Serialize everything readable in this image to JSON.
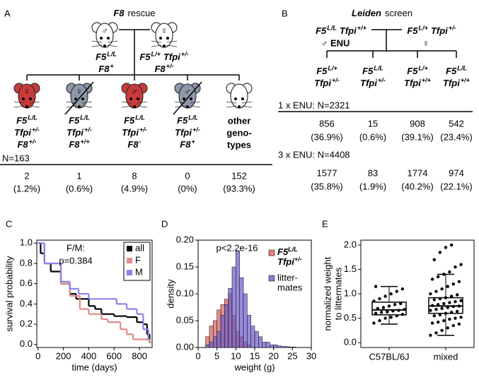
{
  "panel_a": {
    "letter": "A",
    "title_italic": "F8",
    "title_rest": "rescue",
    "parents": [
      {
        "sex": "♂",
        "color": "#ffffff",
        "label": [
          [
            {
              "g": "F5",
              "s": "L/L"
            }
          ],
          [
            {
              "g": "F8",
              "s": "+"
            }
          ]
        ]
      },
      {
        "sex": "♀",
        "color": "#ffffff",
        "label": [
          [
            {
              "g": "F5",
              "s": "L/+"
            },
            {
              "g": "Tfpi",
              "s": "+/-"
            }
          ],
          [
            {
              "g": "F8",
              "s": "+/-"
            }
          ]
        ]
      }
    ],
    "offspring": [
      {
        "sex": "♀",
        "color": "#c93a3a",
        "crossed": false,
        "label": [
          [
            {
              "g": "F5",
              "s": "L/L"
            }
          ],
          [
            {
              "g": "Tfpi",
              "s": "+/-"
            }
          ],
          [
            {
              "g": "F8",
              "s": "+/-"
            }
          ]
        ]
      },
      {
        "sex": "♀",
        "color": "#8e97aa",
        "crossed": true,
        "label": [
          [
            {
              "g": "F5",
              "s": "L/L"
            }
          ],
          [
            {
              "g": "Tfpi",
              "s": "+/-"
            }
          ],
          [
            {
              "g": "F8",
              "s": "+/+"
            }
          ]
        ]
      },
      {
        "sex": "♂",
        "color": "#c93a3a",
        "crossed": false,
        "label": [
          [
            {
              "g": "F5",
              "s": "L/L"
            }
          ],
          [
            {
              "g": "Tfpi",
              "s": "+/-"
            }
          ],
          [
            {
              "g": "F8",
              "s": "-"
            }
          ]
        ]
      },
      {
        "sex": "♂",
        "color": "#8e97aa",
        "crossed": true,
        "label": [
          [
            {
              "g": "F5",
              "s": "L/L"
            }
          ],
          [
            {
              "g": "Tfpi",
              "s": "+/-"
            }
          ],
          [
            {
              "g": "F8",
              "s": "+"
            }
          ]
        ]
      },
      {
        "color": "#ffffff",
        "crossed": false,
        "label": [
          "other",
          "geno-",
          "types"
        ]
      }
    ],
    "n": "N=163",
    "counts": [
      2,
      1,
      8,
      0,
      152
    ],
    "percents": [
      "(1.2%)",
      "(0.6%)",
      "(4.9%)",
      "(0%)",
      "(93.3%)"
    ]
  },
  "panel_b": {
    "letter": "B",
    "title_italic": "Leiden",
    "title_rest": "screen",
    "parents": [
      {
        "sex_label": "♂ ENU",
        "label": [
          [
            {
              "g": "F5",
              "s": "L/L"
            },
            {
              "g": "Tfpi",
              "s": "+/+"
            }
          ]
        ]
      },
      {
        "sex_label": "♀",
        "label": [
          [
            {
              "g": "F5",
              "s": "L/+"
            },
            {
              "g": "Tfpi",
              "s": "+/-"
            }
          ]
        ]
      }
    ],
    "offspring": [
      [
        [
          {
            "g": "F5",
            "s": "L/+"
          }
        ],
        [
          {
            "g": "Tfpi",
            "s": "+/-"
          }
        ]
      ],
      [
        [
          {
            "g": "F5",
            "s": "L/L"
          }
        ],
        [
          {
            "g": "Tfpi",
            "s": "+/-"
          }
        ]
      ],
      [
        [
          {
            "g": "F5",
            "s": "L/+"
          }
        ],
        [
          {
            "g": "Tfpi",
            "s": "+/+"
          }
        ]
      ],
      [
        [
          {
            "g": "F5",
            "s": "L/L"
          }
        ],
        [
          {
            "g": "Tfpi",
            "s": "+/+"
          }
        ]
      ]
    ],
    "screens": [
      {
        "heading": "1 x ENU: N=2321",
        "counts": [
          856,
          15,
          908,
          542
        ],
        "percents": [
          "(36.9%)",
          "(0.6%)",
          "(39.1%)",
          "(23.4%)"
        ]
      },
      {
        "heading": "3 x ENU: N=4408",
        "counts": [
          1577,
          83,
          1774,
          974
        ],
        "percents": [
          "(35.8%)",
          "(1.9%)",
          "(40.2%)",
          "(22.1%)"
        ]
      }
    ]
  },
  "chart_data": [
    {
      "type": "step",
      "panel": "C",
      "xlabel": "time (days)",
      "ylabel": "survival probability",
      "annotation": [
        "F/M:",
        "p=0.384"
      ],
      "legend": "upper right",
      "xlim": [
        -10,
        900
      ],
      "xticks": [
        0,
        200,
        400,
        600,
        800
      ],
      "ylim": [
        -0.03,
        1.03
      ],
      "yticks": [
        {
          "value": 0,
          "label": "0.0"
        },
        0.2,
        0.4,
        0.6,
        0.8,
        {
          "value": 1,
          "label": "1.0"
        }
      ],
      "series": [
        {
          "name": "all",
          "color": "#000000",
          "x": [
            0,
            20,
            50,
            100,
            180,
            250,
            300,
            400,
            450,
            500,
            600,
            700,
            780,
            830,
            860,
            880
          ],
          "values": [
            1,
            0.9,
            0.8,
            0.72,
            0.6,
            0.5,
            0.45,
            0.38,
            0.35,
            0.3,
            0.28,
            0.27,
            0.22,
            0.2,
            0.1,
            0.02
          ]
        },
        {
          "name": "F",
          "color": "#e08a86",
          "x": [
            0,
            50,
            180,
            250,
            330,
            400,
            500,
            550,
            650,
            700,
            750,
            860,
            880
          ],
          "values": [
            1,
            0.8,
            0.6,
            0.48,
            0.35,
            0.3,
            0.25,
            0.22,
            0.15,
            0.1,
            0.05,
            0.05,
            0.02
          ]
        },
        {
          "name": "M",
          "color": "#8a84ee",
          "x": [
            0,
            50,
            180,
            250,
            320,
            400,
            550,
            620,
            700,
            780,
            830,
            870
          ],
          "values": [
            1,
            0.8,
            0.62,
            0.55,
            0.5,
            0.45,
            0.45,
            0.4,
            0.35,
            0.3,
            0.15,
            0.05
          ]
        }
      ]
    },
    {
      "type": "histogram",
      "panel": "D",
      "xlabel": "weight (g)",
      "ylabel": "density",
      "annotation": [
        "p<2.2e-16"
      ],
      "legend": "right",
      "xlim": [
        0,
        30
      ],
      "xticks": [
        0,
        5,
        10,
        15,
        20,
        25,
        30
      ],
      "ylim": [
        0,
        0.2
      ],
      "yticks": [
        {
          "value": 0,
          "label": "0.00"
        },
        0.05,
        {
          "value": 0.1,
          "label": "0.10"
        },
        0.15,
        {
          "value": 0.2,
          "label": "0.20"
        }
      ],
      "series": [
        {
          "name": [
            [
              {
                "g": "F5",
                "s": "L/L"
              }
            ],
            [
              {
                "g": "Tfpi",
                "s": "+/-"
              }
            ]
          ],
          "color": "#d9605a",
          "bins": [
            2,
            3,
            4,
            5,
            6,
            7,
            8,
            9,
            10,
            11,
            12,
            13,
            14
          ],
          "values": [
            0.02,
            0.04,
            0.05,
            0.07,
            0.08,
            0.09,
            0.1,
            0.06,
            0.03,
            0.02,
            0.01,
            0.005
          ]
        },
        {
          "name": [
            "litter-",
            "mates"
          ],
          "color": "#6a5acd",
          "bins": [
            2,
            3,
            4,
            5,
            6,
            7,
            8,
            9,
            10,
            11,
            12,
            13,
            14,
            15,
            16,
            17,
            18,
            19,
            20,
            21,
            22,
            23,
            24,
            25,
            26
          ],
          "values": [
            0.005,
            0.01,
            0.02,
            0.03,
            0.06,
            0.08,
            0.11,
            0.15,
            0.18,
            0.13,
            0.1,
            0.06,
            0.04,
            0.03,
            0.02,
            0.01,
            0.01,
            0.005,
            0.005,
            0.003,
            0.002,
            0.002,
            0.001,
            0.001
          ]
        }
      ]
    },
    {
      "type": "box",
      "panel": "E",
      "ylabel": [
        "normalized weight",
        "to littermates"
      ],
      "categories": [
        "C57BL/6J",
        "mixed"
      ],
      "ylim": [
        -0.1,
        2.1
      ],
      "yticks": [
        {
          "value": 0,
          "label": "0.0"
        },
        0.5,
        {
          "value": 1,
          "label": "1.0"
        },
        1.5,
        {
          "value": 2,
          "label": "2.0"
        }
      ],
      "boxes": [
        {
          "low": 0.38,
          "q1": 0.57,
          "median": 0.67,
          "q3": 0.83,
          "high": 1.15,
          "points": [
            0.4,
            0.45,
            0.5,
            0.52,
            0.55,
            0.58,
            0.6,
            0.62,
            0.63,
            0.65,
            0.66,
            0.68,
            0.7,
            0.72,
            0.75,
            0.78,
            0.8,
            0.85,
            0.9,
            0.95,
            1.0,
            1.05,
            1.1,
            1.15
          ]
        },
        {
          "low": 0.15,
          "q1": 0.6,
          "median": 0.75,
          "q3": 0.92,
          "high": 1.4,
          "points": [
            0.15,
            0.2,
            0.25,
            0.3,
            0.35,
            0.38,
            0.4,
            0.42,
            0.45,
            0.48,
            0.5,
            0.52,
            0.55,
            0.57,
            0.6,
            0.62,
            0.64,
            0.66,
            0.68,
            0.7,
            0.72,
            0.74,
            0.75,
            0.76,
            0.78,
            0.8,
            0.82,
            0.84,
            0.86,
            0.88,
            0.9,
            0.92,
            0.95,
            0.98,
            1.0,
            1.05,
            1.1,
            1.15,
            1.2,
            1.25,
            1.3,
            1.35,
            1.4,
            1.45,
            1.55,
            1.6,
            1.7,
            1.85,
            1.95,
            2.0
          ]
        }
      ]
    }
  ]
}
